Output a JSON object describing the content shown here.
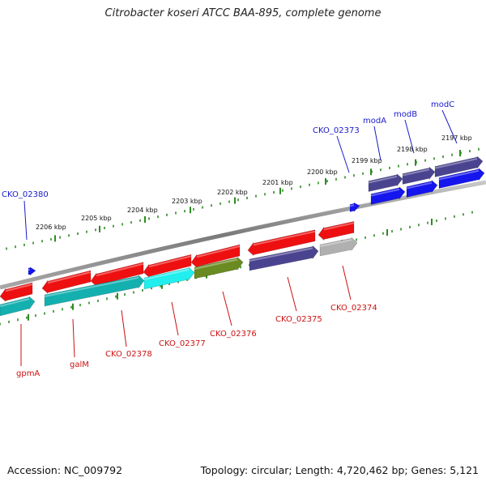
{
  "title": "Citrobacter koseri ATCC BAA-895, complete genome",
  "footer": {
    "accession": "Accession: NC_009792",
    "topology": "Topology: circular; Length: 4,720,462 bp; Genes: 5,121"
  },
  "colors": {
    "backbone": "#808080",
    "tick": "#2e8b22",
    "forward_label": "#1a1acc",
    "reverse_label": "#cc1111",
    "gene_red": "#ee1010",
    "gene_navy": "#4a4490",
    "gene_blue": "#1515ee",
    "gene_teal": "#14b0b0",
    "gene_cyan": "#22eeee",
    "gene_olive": "#6a8a22",
    "gene_gray": "#b0b0b0"
  },
  "ticks_upper": [
    "2206 kbp",
    "2205 kbp",
    "2204 kbp",
    "2203 kbp",
    "2202 kbp",
    "2201 kbp",
    "2200 kbp",
    "2199 kbp",
    "2198 kbp",
    "2197 kbp"
  ],
  "forward_genes": [
    "CKO_02380",
    "CKO_02373",
    "modA",
    "modB",
    "modC"
  ],
  "reverse_genes": [
    "gpmA",
    "galM",
    "CKO_02378",
    "CKO_02377",
    "CKO_02376",
    "CKO_02375",
    "CKO_02374"
  ]
}
